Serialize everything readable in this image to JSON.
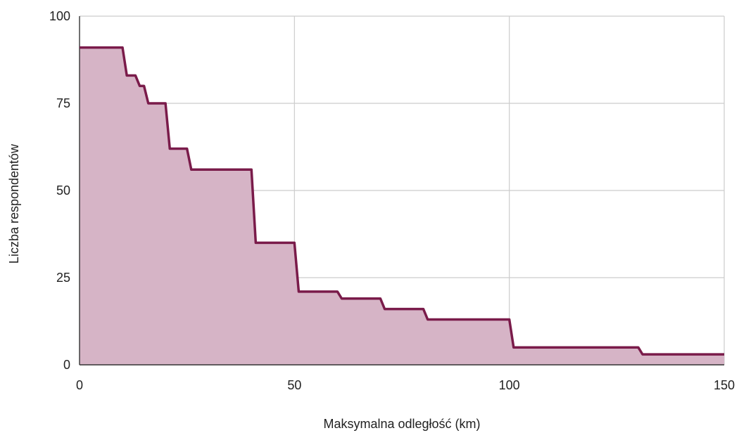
{
  "chart_data": {
    "type": "area",
    "step": true,
    "xlabel": "Maksymalna odległość (km)",
    "ylabel": "Liczba respondentów",
    "xlim": [
      0,
      150
    ],
    "ylim": [
      0,
      100
    ],
    "x_ticks": [
      "0",
      "50",
      "100",
      "150"
    ],
    "y_ticks": [
      "0",
      "25",
      "50",
      "75",
      "100"
    ],
    "grid": true,
    "legend": "none",
    "colors": {
      "line": "#7a1b4a",
      "fill": "#d6b4c6"
    },
    "series": [
      {
        "x": [
          0,
          10,
          11,
          13,
          14,
          15,
          16,
          20,
          21,
          25,
          26,
          40,
          41,
          50,
          51,
          60,
          61,
          70,
          71,
          80,
          81,
          100,
          101,
          130,
          131,
          150
        ],
        "values": [
          91,
          91,
          83,
          83,
          80,
          80,
          75,
          75,
          62,
          62,
          56,
          56,
          35,
          35,
          21,
          21,
          19,
          19,
          16,
          16,
          13,
          13,
          5,
          5,
          3,
          3
        ]
      }
    ]
  }
}
